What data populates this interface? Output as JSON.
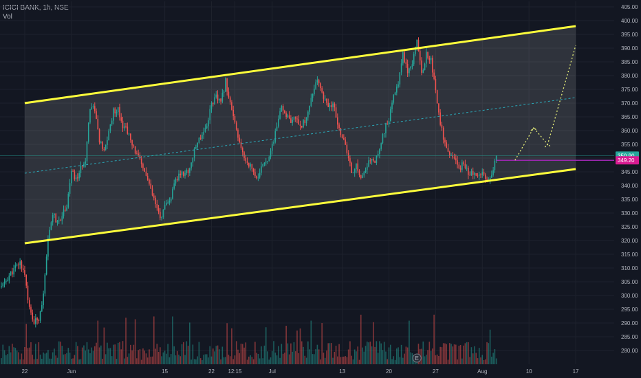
{
  "header": {
    "symbol": "ICICI BANK",
    "interval": "1h",
    "exchange": "NSE",
    "separator": ", ",
    "volume_label": "Vol"
  },
  "colors": {
    "background": "#131722",
    "up": "#26a69a",
    "down": "#ef5350",
    "channel": "#ffff3b",
    "midline": "#2aa8b8",
    "projection": "#e8f07a",
    "support_line": "#9c27b0",
    "price_tag": "#26a69a",
    "support_tag": "#d81b91",
    "grid": "#1e222d",
    "axis_text": "#b2b5be"
  },
  "chart_data": {
    "type": "candlestick",
    "title": "ICICI BANK, 1h, NSE",
    "ylim": [
      275,
      407
    ],
    "yticks": [
      280,
      285,
      290,
      295,
      300,
      305,
      310,
      315,
      320,
      325,
      330,
      335,
      340,
      345,
      350,
      355,
      360,
      365,
      370,
      375,
      380,
      385,
      390,
      395,
      400,
      405
    ],
    "ytick_labels": [
      "280.00",
      "285.00",
      "290.00",
      "295.00",
      "300.00",
      "305.00",
      "310.00",
      "315.00",
      "320.00",
      "325.00",
      "330.00",
      "335.00",
      "340.00",
      "345.00",
      "350.00",
      "355.00",
      "360.00",
      "365.00",
      "370.00",
      "375.00",
      "380.00",
      "385.00",
      "390.00",
      "395.00",
      "400.00",
      "405.00"
    ],
    "xlabels": [
      "22",
      "Jun",
      "15",
      "22",
      "12:15",
      "Jul",
      "13",
      "20",
      "27",
      "Aug",
      "10",
      "17"
    ],
    "xlabel_bars": [
      5,
      15,
      35,
      45,
      50,
      58,
      73,
      83,
      93,
      103,
      113,
      123
    ],
    "total_bars": 128,
    "last_bar": 106,
    "price_path": [
      [
        0,
        303
      ],
      [
        2,
        308
      ],
      [
        4,
        312
      ],
      [
        5,
        308
      ],
      [
        6,
        295
      ],
      [
        7,
        290
      ],
      [
        8,
        292
      ],
      [
        9,
        300
      ],
      [
        10,
        320
      ],
      [
        11,
        330
      ],
      [
        12,
        326
      ],
      [
        14,
        333
      ],
      [
        15,
        345
      ],
      [
        16,
        342
      ],
      [
        18,
        350
      ],
      [
        19,
        369
      ],
      [
        20,
        368
      ],
      [
        21,
        356
      ],
      [
        22,
        352
      ],
      [
        24,
        367
      ],
      [
        25,
        368
      ],
      [
        26,
        362
      ],
      [
        27,
        360
      ],
      [
        28,
        354
      ],
      [
        29,
        352
      ],
      [
        30,
        347
      ],
      [
        31,
        344
      ],
      [
        32,
        338
      ],
      [
        33,
        333
      ],
      [
        34,
        328
      ],
      [
        35,
        332
      ],
      [
        36,
        334
      ],
      [
        37,
        340
      ],
      [
        38,
        344
      ],
      [
        40,
        345
      ],
      [
        42,
        356
      ],
      [
        44,
        362
      ],
      [
        45,
        370
      ],
      [
        46,
        372
      ],
      [
        47,
        370
      ],
      [
        48,
        378
      ],
      [
        49,
        370
      ],
      [
        50,
        362
      ],
      [
        51,
        355
      ],
      [
        52,
        350
      ],
      [
        53,
        348
      ],
      [
        54,
        345
      ],
      [
        55,
        342
      ],
      [
        56,
        348
      ],
      [
        57,
        350
      ],
      [
        58,
        354
      ],
      [
        59,
        362
      ],
      [
        60,
        368
      ],
      [
        61,
        366
      ],
      [
        62,
        362
      ],
      [
        63,
        365
      ],
      [
        64,
        362
      ],
      [
        65,
        363
      ],
      [
        67,
        376
      ],
      [
        68,
        378
      ],
      [
        69,
        372
      ],
      [
        70,
        368
      ],
      [
        71,
        370
      ],
      [
        72,
        362
      ],
      [
        73,
        358
      ],
      [
        74,
        352
      ],
      [
        75,
        345
      ],
      [
        76,
        347
      ],
      [
        77,
        343
      ],
      [
        78,
        345
      ],
      [
        79,
        350
      ],
      [
        80,
        348
      ],
      [
        82,
        360
      ],
      [
        83,
        364
      ],
      [
        84,
        372
      ],
      [
        85,
        378
      ],
      [
        86,
        388
      ],
      [
        87,
        382
      ],
      [
        88,
        385
      ],
      [
        89,
        394
      ],
      [
        90,
        380
      ],
      [
        91,
        388
      ],
      [
        92,
        386
      ],
      [
        93,
        374
      ],
      [
        94,
        363
      ],
      [
        95,
        355
      ],
      [
        96,
        350
      ],
      [
        97,
        350
      ],
      [
        98,
        346
      ],
      [
        99,
        348
      ],
      [
        100,
        345
      ],
      [
        101,
        344
      ],
      [
        102,
        343
      ],
      [
        103,
        346
      ],
      [
        104,
        342
      ],
      [
        105,
        345
      ],
      [
        106,
        350
      ]
    ],
    "channel": {
      "upper": [
        [
          5,
          370
        ],
        [
          123,
          398
        ]
      ],
      "lower": [
        [
          5,
          319
        ],
        [
          123,
          346
        ]
      ],
      "midline": [
        [
          5,
          344.5
        ],
        [
          123,
          372
        ]
      ]
    },
    "support": {
      "level": 349.2,
      "from_bar": 106
    },
    "projection": [
      [
        110,
        349.2
      ],
      [
        114,
        361
      ],
      [
        117,
        355
      ],
      [
        123,
        391
      ]
    ],
    "tags": {
      "last_price": {
        "label": "350.90",
        "price": 350.9
      },
      "support_value": {
        "label": "349.20",
        "price": 349.2
      }
    },
    "volume_note": "Volume histogram at the bottom, values not labeled"
  },
  "event_marker": {
    "label": "E",
    "bar": 89
  }
}
